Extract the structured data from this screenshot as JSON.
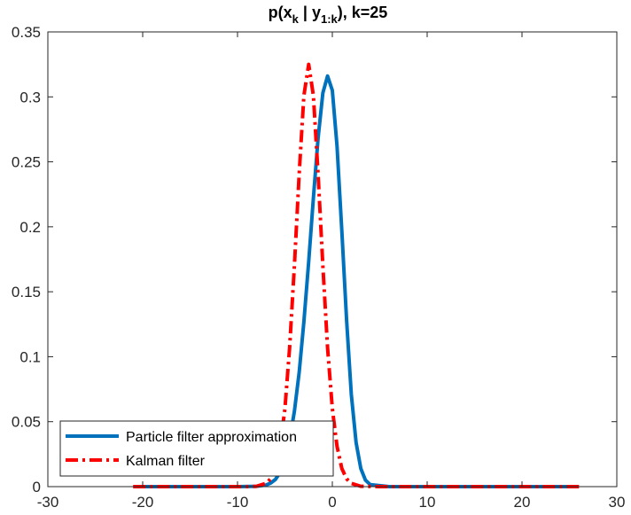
{
  "chart_data": {
    "type": "line",
    "title": {
      "prefix": "p(x",
      "sub1": "k",
      "mid": " |  y",
      "sub2": "1:k",
      "suffix": "), k=25"
    },
    "xlabel": "",
    "ylabel": "",
    "xlim": [
      -30,
      30
    ],
    "ylim": [
      0,
      0.35
    ],
    "xticks": [
      -30,
      -20,
      -10,
      0,
      10,
      20,
      30
    ],
    "xtick_labels": [
      "-30",
      "-20",
      "-10",
      "0",
      "10",
      "20",
      "30"
    ],
    "yticks": [
      0,
      0.05,
      0.1,
      0.15,
      0.2,
      0.25,
      0.3,
      0.35
    ],
    "ytick_labels": [
      "0",
      "0.05",
      "0.1",
      "0.15",
      "0.2",
      "0.25",
      "0.3",
      "0.35"
    ],
    "grid": false,
    "legend_position": "bottom-left",
    "series": [
      {
        "name": "Particle filter approximation",
        "color": "#0072BD",
        "style": "solid",
        "x": [
          -21,
          -10,
          -8,
          -7,
          -6.5,
          -6,
          -5.5,
          -5,
          -4.5,
          -4,
          -3.5,
          -3,
          -2.5,
          -2,
          -1.5,
          -1,
          -0.5,
          0,
          0.5,
          1,
          1.5,
          2,
          2.5,
          3,
          3.5,
          4,
          6,
          26
        ],
        "y": [
          0,
          0,
          0.0003,
          0.0012,
          0.0027,
          0.0055,
          0.011,
          0.021,
          0.036,
          0.058,
          0.088,
          0.127,
          0.173,
          0.222,
          0.268,
          0.303,
          0.316,
          0.305,
          0.262,
          0.197,
          0.128,
          0.071,
          0.034,
          0.014,
          0.005,
          0.0015,
          0,
          0
        ]
      },
      {
        "name": "Kalman filter",
        "color": "#FF0000",
        "style": "dashdot",
        "x": [
          -21,
          -9,
          -8,
          -7,
          -6.5,
          -6,
          -5.5,
          -5,
          -4.5,
          -4,
          -3.5,
          -3,
          -2.5,
          -2,
          -1.5,
          -1,
          -0.5,
          0,
          0.5,
          1,
          1.5,
          2,
          3,
          5,
          26
        ],
        "y": [
          0,
          0,
          0.0003,
          0.0025,
          0.006,
          0.014,
          0.031,
          0.06,
          0.107,
          0.17,
          0.241,
          0.301,
          0.325,
          0.301,
          0.241,
          0.17,
          0.107,
          0.06,
          0.031,
          0.014,
          0.006,
          0.0025,
          0.0003,
          0,
          0
        ]
      }
    ]
  }
}
